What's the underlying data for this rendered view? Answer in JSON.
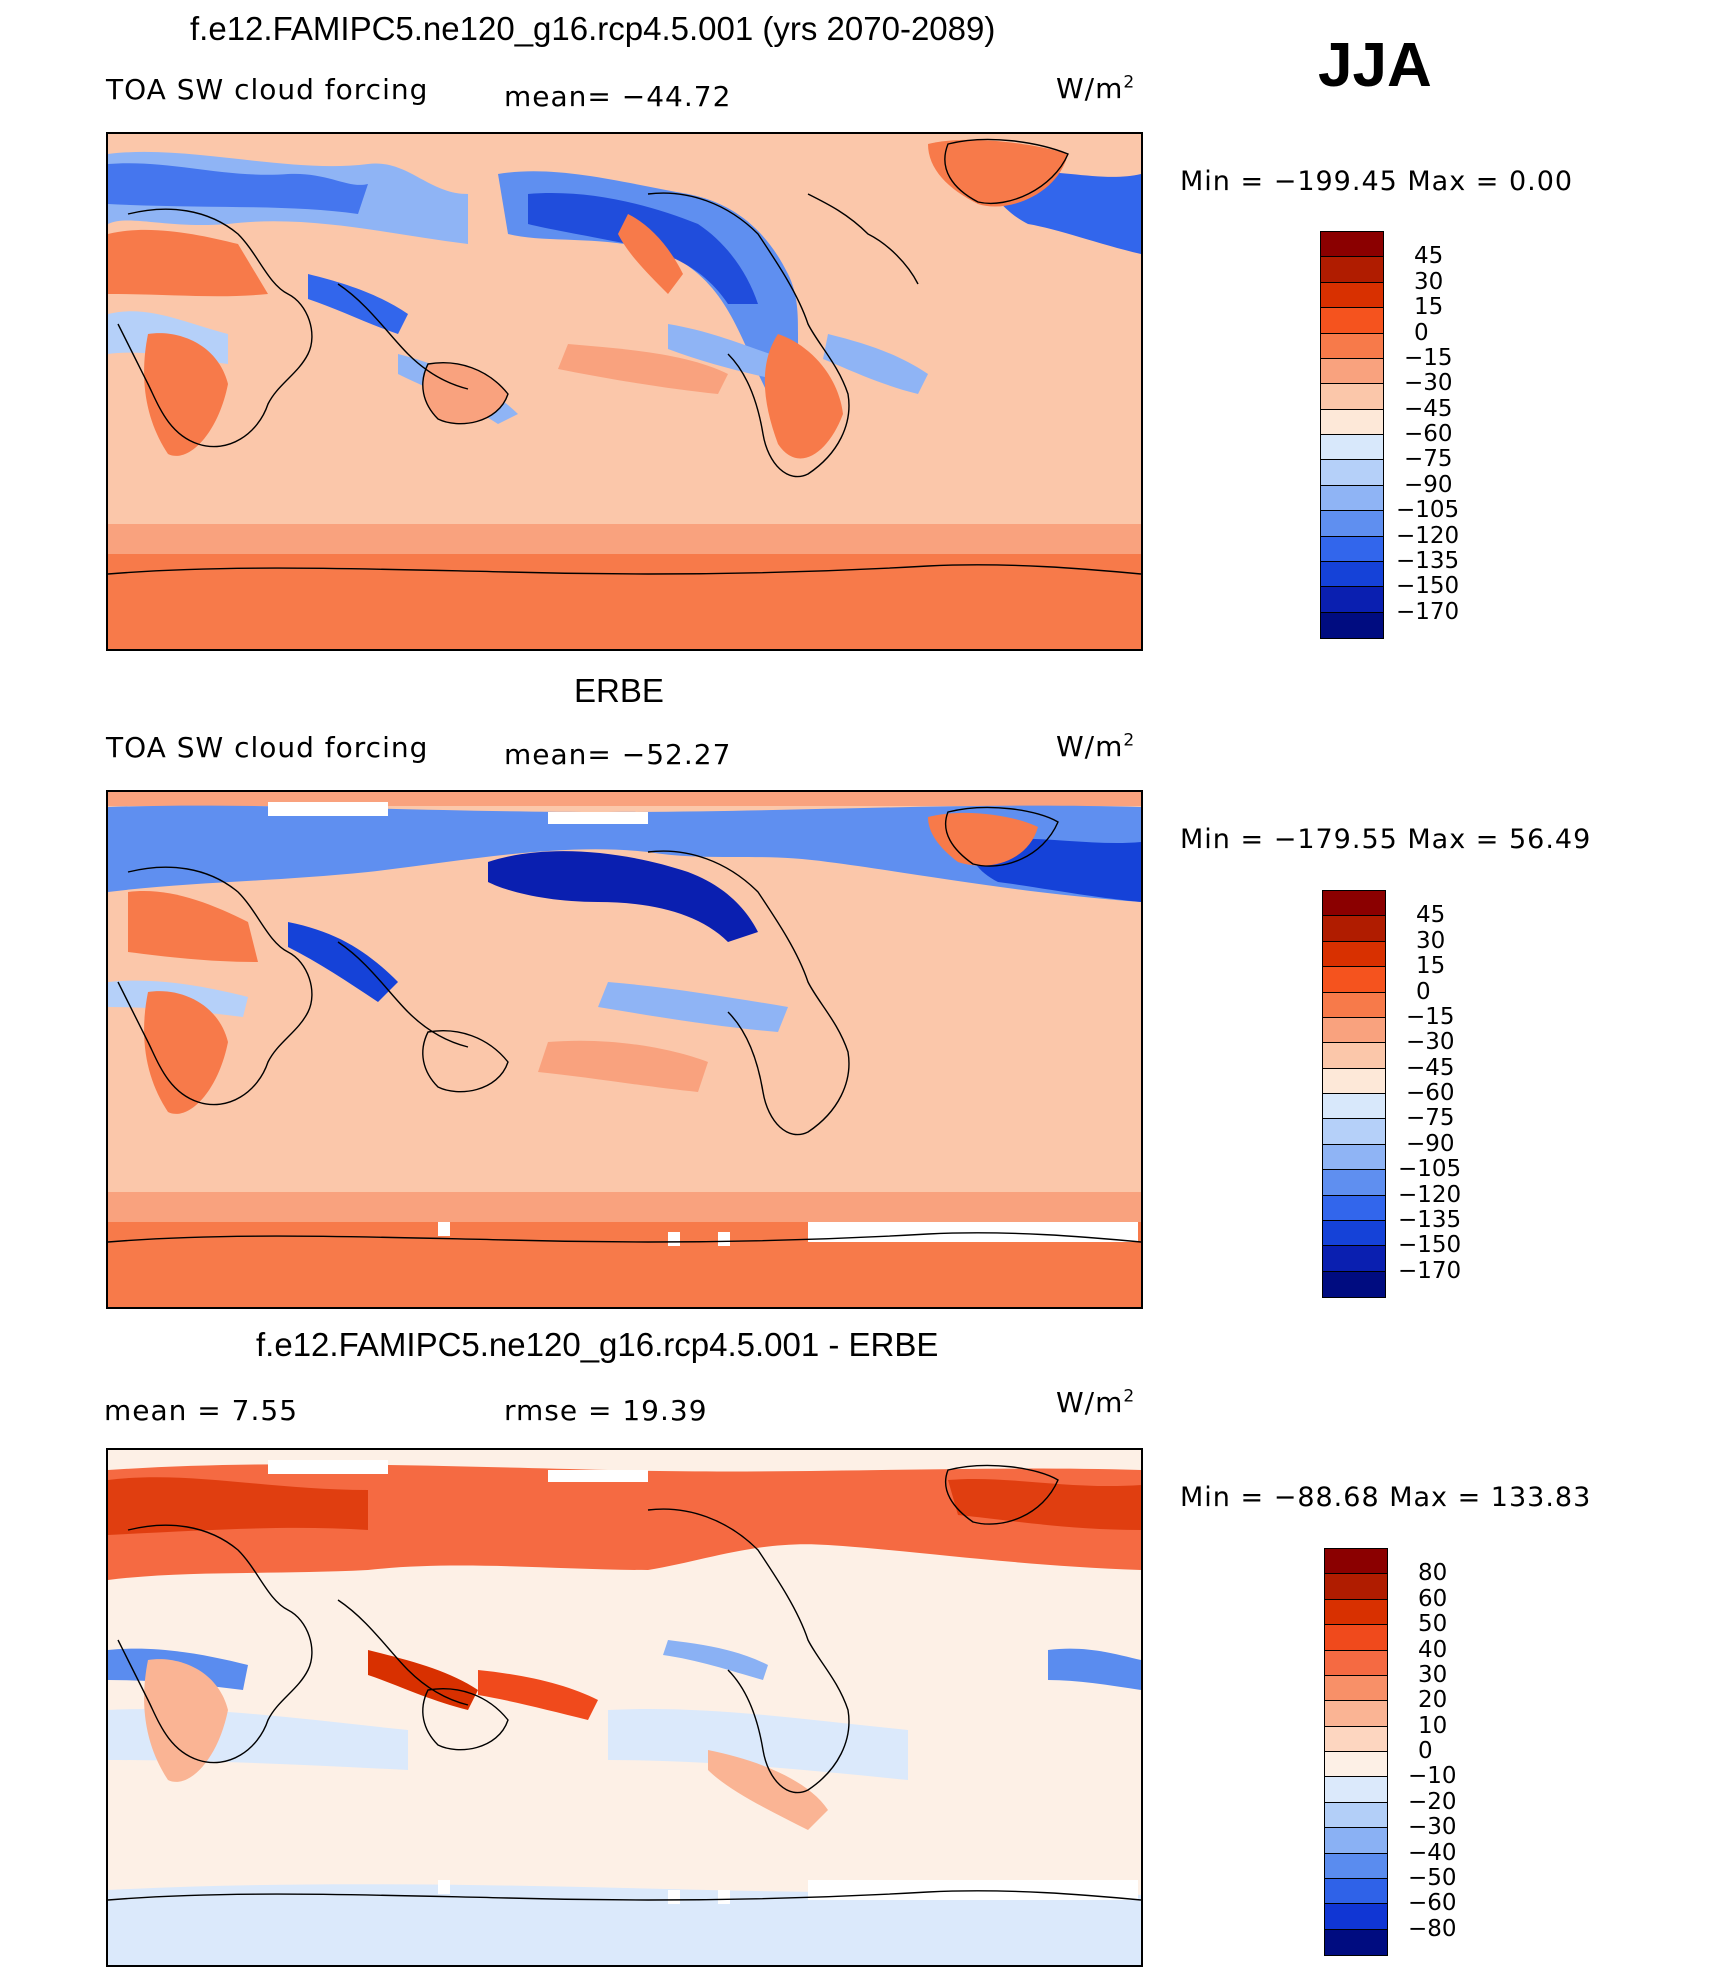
{
  "season": "JJA",
  "units_base": "W/m",
  "units_exp": "2",
  "panels": [
    {
      "title": "f.e12.FAMIPC5.ne120_g16.rcp4.5.001 (yrs 2070-2089)",
      "left_label": "TOA SW cloud forcing",
      "mid_label": "mean= −44.72",
      "minmax": "Min  =  −199.45  Max  =      0.00",
      "colorbar_levels": [
        "45",
        "30",
        "15",
        "0",
        "−15",
        "−30",
        "−45",
        "−60",
        "−75",
        "−90",
        "−105",
        "−120",
        "−135",
        "−150",
        "−170"
      ],
      "colorbar_colors": [
        "#8b0000",
        "#b01c00",
        "#d83000",
        "#f5531e",
        "#f77a4a",
        "#f9a27e",
        "#fbc7aa",
        "#fde8d8",
        "#d8e8fb",
        "#b5d0f9",
        "#8fb4f5",
        "#5f8ff0",
        "#3266ec",
        "#1542d8",
        "#0a1fb0",
        "#000c80"
      ],
      "map_style": "model"
    },
    {
      "title": "ERBE",
      "left_label": "TOA SW cloud forcing",
      "mid_label": "mean= −52.27",
      "minmax": "Min  =  −179.55  Max  =    56.49",
      "colorbar_levels": [
        "45",
        "30",
        "15",
        "0",
        "−15",
        "−30",
        "−45",
        "−60",
        "−75",
        "−90",
        "−105",
        "−120",
        "−135",
        "−150",
        "−170"
      ],
      "colorbar_colors": [
        "#8b0000",
        "#b01c00",
        "#d83000",
        "#f5531e",
        "#f77a4a",
        "#f9a27e",
        "#fbc7aa",
        "#fde8d8",
        "#d8e8fb",
        "#b5d0f9",
        "#8fb4f5",
        "#5f8ff0",
        "#3266ec",
        "#1542d8",
        "#0a1fb0",
        "#000c80"
      ],
      "map_style": "obs"
    },
    {
      "title": "f.e12.FAMIPC5.ne120_g16.rcp4.5.001 - ERBE",
      "left_label": "mean  =     7.55",
      "mid_label": "rmse  =    19.39",
      "minmax": "Min  =  −88.68  Max  =  133.83",
      "colorbar_levels": [
        "80",
        "60",
        "50",
        "40",
        "30",
        "20",
        "10",
        "0",
        "−10",
        "−20",
        "−30",
        "−40",
        "−50",
        "−60",
        "−80"
      ],
      "colorbar_colors": [
        "#8b0000",
        "#b01c00",
        "#d83000",
        "#f04a1c",
        "#f56a42",
        "#f89068",
        "#fab494",
        "#fdd6c0",
        "#fdf0e6",
        "#dbe9fb",
        "#b3cff8",
        "#8ab1f4",
        "#5a8cef",
        "#2f62e8",
        "#1036d4",
        "#000c80"
      ],
      "map_style": "diff"
    }
  ]
}
